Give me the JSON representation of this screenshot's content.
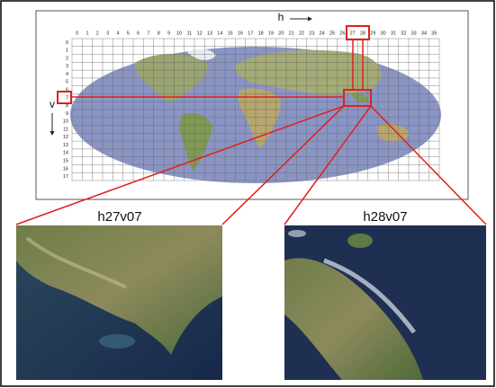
{
  "axis_labels": {
    "h": "h",
    "v": "v"
  },
  "columns": [
    0,
    1,
    2,
    3,
    4,
    5,
    6,
    7,
    8,
    9,
    10,
    11,
    12,
    13,
    14,
    15,
    16,
    17,
    18,
    19,
    20,
    21,
    22,
    23,
    24,
    25,
    26,
    27,
    28,
    29,
    30,
    31,
    32,
    33,
    34,
    35
  ],
  "rows": [
    0,
    1,
    2,
    3,
    4,
    5,
    6,
    7,
    8,
    9,
    10,
    11,
    12,
    13,
    14,
    15,
    16,
    17
  ],
  "tiles": [
    {
      "label": "h27v07"
    },
    {
      "label": "h28v07"
    }
  ]
}
